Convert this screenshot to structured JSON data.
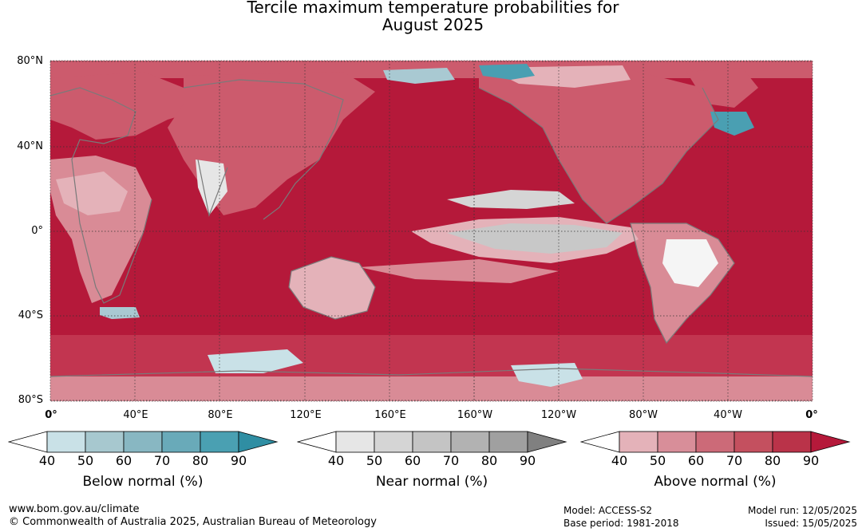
{
  "title": {
    "line1": "Tercile maximum temperature probabilities for",
    "line2": "August 2025"
  },
  "map": {
    "lat_labels": [
      "80°N",
      "40°N",
      "0°",
      "40°S",
      "80°S"
    ],
    "lon_labels": [
      "0°",
      "40°E",
      "80°E",
      "120°E",
      "160°E",
      "160°W",
      "120°W",
      "80°W",
      "40°W",
      "0°"
    ],
    "colors": {
      "ocean_above_90": "#b5193a",
      "above_80": "#c23550",
      "above_70": "#cc5b6d",
      "above_60": "#d98b96",
      "above_50": "#e4b2b9",
      "near_normal": "#c8c8c8",
      "below_50": "#a9c9d2",
      "below_70": "#4a9fb2",
      "coast": "#7a7a7a",
      "grid": "#333333"
    }
  },
  "legends": [
    {
      "caption": "Below normal (%)",
      "ticks": [
        "40",
        "50",
        "60",
        "70",
        "80",
        "90"
      ],
      "colors": [
        "#ffffff",
        "#c9e1e7",
        "#a7c8cf",
        "#88b7c2",
        "#69aab9",
        "#4aa0b2",
        "#2f8ea3"
      ]
    },
    {
      "caption": "Near normal (%)",
      "ticks": [
        "40",
        "50",
        "60",
        "70",
        "80",
        "90"
      ],
      "colors": [
        "#ffffff",
        "#e6e6e6",
        "#d5d5d5",
        "#c4c4c4",
        "#b2b2b2",
        "#a0a0a0",
        "#808080"
      ]
    },
    {
      "caption": "Above normal (%)",
      "ticks": [
        "40",
        "50",
        "60",
        "70",
        "80",
        "90"
      ],
      "colors": [
        "#ffffff",
        "#e4b2b9",
        "#d88e99",
        "#cc6a78",
        "#c4505f",
        "#ba3349",
        "#b5193a"
      ]
    }
  ],
  "footer": {
    "website": "www.bom.gov.au/climate",
    "copyright": "© Commonwealth of Australia 2025, Australian Bureau of Meteorology",
    "model": "Model: ACCESS-S2",
    "base_period": "Base period: 1981-2018",
    "model_run": "Model run: 12/05/2025",
    "issued": "Issued: 15/05/2025"
  }
}
